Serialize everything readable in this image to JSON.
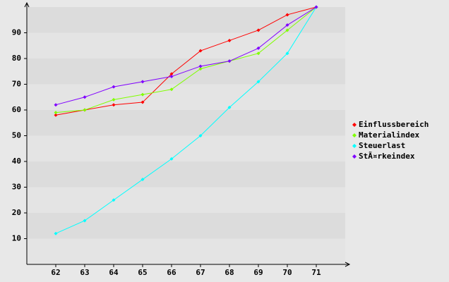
{
  "chart_data": {
    "type": "line",
    "x": [
      62,
      63,
      64,
      65,
      66,
      67,
      68,
      69,
      70,
      71
    ],
    "xlim": [
      61,
      72
    ],
    "xticks": [
      62,
      63,
      64,
      65,
      66,
      67,
      68,
      69,
      70,
      71
    ],
    "ylim": [
      0,
      100
    ],
    "yticks": [
      10,
      20,
      30,
      40,
      50,
      60,
      70,
      80,
      90
    ],
    "series": [
      {
        "name": "Einflussbereich",
        "color": "#ff0000",
        "values": [
          58,
          60,
          62,
          63,
          74,
          83,
          87,
          91,
          97,
          100
        ]
      },
      {
        "name": "Materialindex",
        "color": "#80ff00",
        "values": [
          59,
          60,
          64,
          66,
          68,
          76,
          79,
          82,
          91,
          100
        ]
      },
      {
        "name": "Steuerlast",
        "color": "#00ffff",
        "values": [
          12,
          17,
          25,
          33,
          41,
          50,
          61,
          71,
          82,
          100
        ]
      },
      {
        "name": "StÃ¤rkeindex",
        "color": "#8000ff",
        "values": [
          62,
          65,
          69,
          71,
          73,
          77,
          79,
          84,
          93,
          100
        ]
      }
    ]
  }
}
